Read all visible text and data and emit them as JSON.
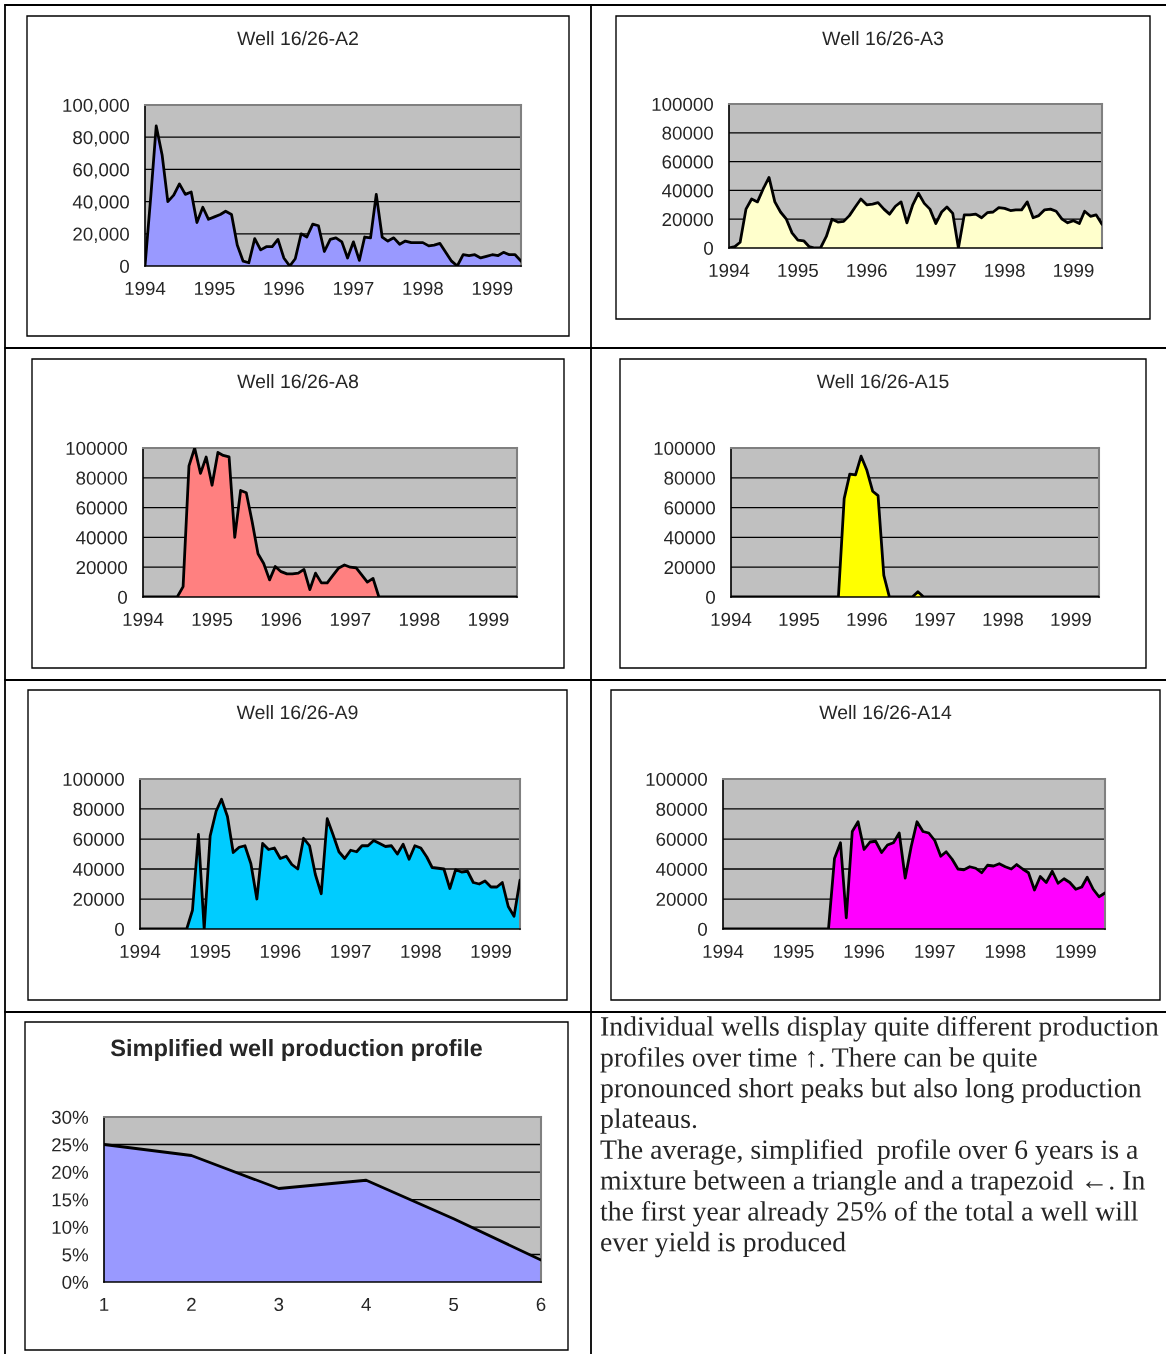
{
  "chart_data": [
    {
      "type": "area",
      "title": "Well 16/26-A2",
      "grid": "y",
      "x": [
        "1994-01",
        "1994-02",
        "1994-03",
        "1994-04",
        "1994-05",
        "1994-06",
        "1994-07",
        "1994-08",
        "1994-09",
        "1994-10",
        "1994-11",
        "1994-12",
        "1995-01",
        "1995-02",
        "1995-03",
        "1995-04",
        "1995-05",
        "1995-06",
        "1995-07",
        "1995-08",
        "1995-09",
        "1995-10",
        "1995-11",
        "1995-12",
        "1996-01",
        "1996-02",
        "1996-03",
        "1996-04",
        "1996-05",
        "1996-06",
        "1996-07",
        "1996-08",
        "1996-09",
        "1996-10",
        "1996-11",
        "1996-12",
        "1997-01",
        "1997-02",
        "1997-03",
        "1997-04",
        "1997-05",
        "1997-06",
        "1997-07",
        "1997-08",
        "1997-09",
        "1997-10",
        "1997-11",
        "1997-12",
        "1998-01",
        "1998-02",
        "1998-03",
        "1998-04",
        "1998-05",
        "1998-06",
        "1998-07",
        "1998-08",
        "1998-09",
        "1998-10",
        "1998-11",
        "1998-12",
        "1999-01",
        "1999-02",
        "1999-03",
        "1999-04",
        "1999-05",
        "1999-06"
      ],
      "xlim": [
        "1994-01",
        "1999-06"
      ],
      "xticks": [
        {
          "value": "1994-01",
          "label": "1994"
        },
        {
          "value": "1995-01",
          "label": "1995"
        },
        {
          "value": "1996-01",
          "label": "1996"
        },
        {
          "value": "1997-01",
          "label": "1997"
        },
        {
          "value": "1998-01",
          "label": "1998"
        },
        {
          "value": "1999-01",
          "label": "1999"
        }
      ],
      "ylim": [
        0,
        100000
      ],
      "yticks": [
        0,
        {
          "value": 20000,
          "label": "20,000"
        },
        {
          "value": 40000,
          "label": "40,000"
        },
        {
          "value": 60000,
          "label": "60,000"
        },
        {
          "value": 80000,
          "label": "80,000"
        },
        {
          "value": 100000,
          "label": "100,000"
        }
      ],
      "series": [
        {
          "color": "#9999ff",
          "values": [
            0,
            44000,
            87000,
            69000,
            40000,
            44000,
            51000,
            44500,
            46000,
            27000,
            36500,
            29000,
            30500,
            32000,
            34000,
            32000,
            13000,
            3000,
            2000,
            17000,
            10000,
            12000,
            12000,
            16500,
            5000,
            0,
            4500,
            20000,
            18000,
            26000,
            25000,
            9000,
            16500,
            17500,
            15000,
            5000,
            15000,
            3500,
            18000,
            17500,
            44500,
            18000,
            15500,
            17500,
            13500,
            15500,
            14500,
            14500,
            14500,
            12500,
            13000,
            14000,
            8500,
            3000,
            0,
            7000,
            6500,
            7000,
            5000,
            6000,
            7000,
            6500,
            8500,
            7000,
            7000,
            3000
          ]
        }
      ]
    },
    {
      "type": "area",
      "title": "Well 16/26-A3",
      "grid": "y",
      "x": [
        "1994-01",
        "1994-02",
        "1994-03",
        "1994-04",
        "1994-05",
        "1994-06",
        "1994-07",
        "1994-08",
        "1994-09",
        "1994-10",
        "1994-11",
        "1994-12",
        "1995-01",
        "1995-02",
        "1995-03",
        "1995-04",
        "1995-05",
        "1995-06",
        "1995-07",
        "1995-08",
        "1995-09",
        "1995-10",
        "1995-11",
        "1995-12",
        "1996-01",
        "1996-02",
        "1996-03",
        "1996-04",
        "1996-05",
        "1996-06",
        "1996-07",
        "1996-08",
        "1996-09",
        "1996-10",
        "1996-11",
        "1996-12",
        "1997-01",
        "1997-02",
        "1997-03",
        "1997-04",
        "1997-05",
        "1997-06",
        "1997-07",
        "1997-08",
        "1997-09",
        "1997-10",
        "1997-11",
        "1997-12",
        "1998-01",
        "1998-02",
        "1998-03",
        "1998-04",
        "1998-05",
        "1998-06",
        "1998-07",
        "1998-08",
        "1998-09",
        "1998-10",
        "1998-11",
        "1998-12",
        "1999-01",
        "1999-02",
        "1999-03",
        "1999-04",
        "1999-05",
        "1999-06"
      ],
      "xlim": [
        "1994-01",
        "1999-06"
      ],
      "xticks": [
        {
          "value": "1994-01",
          "label": "1994"
        },
        {
          "value": "1995-01",
          "label": "1995"
        },
        {
          "value": "1996-01",
          "label": "1996"
        },
        {
          "value": "1997-01",
          "label": "1997"
        },
        {
          "value": "1998-01",
          "label": "1998"
        },
        {
          "value": "1999-01",
          "label": "1999"
        }
      ],
      "ylim": [
        0,
        100000
      ],
      "yticks": [
        0,
        20000,
        40000,
        60000,
        80000,
        100000
      ],
      "series": [
        {
          "color": "#ffffcc",
          "values": [
            0,
            1000,
            4000,
            27000,
            34000,
            32000,
            41000,
            49000,
            32000,
            25000,
            20000,
            10500,
            5500,
            5000,
            1000,
            0,
            0,
            8000,
            20000,
            18000,
            18500,
            22500,
            28500,
            34000,
            30000,
            30500,
            31500,
            27000,
            23500,
            29000,
            32000,
            17500,
            30000,
            38000,
            31000,
            27000,
            17000,
            25000,
            28500,
            24000,
            0,
            23000,
            23000,
            23500,
            21000,
            24500,
            25000,
            28000,
            27500,
            26000,
            26500,
            26500,
            32000,
            21000,
            22500,
            26500,
            27000,
            25500,
            20000,
            17500,
            19000,
            17000,
            25500,
            22000,
            23000,
            16500
          ]
        }
      ]
    },
    {
      "type": "area",
      "title": "Well 16/26-A8",
      "grid": "y",
      "x": [
        "1994-01",
        "1994-02",
        "1994-03",
        "1994-04",
        "1994-05",
        "1994-06",
        "1994-07",
        "1994-08",
        "1994-09",
        "1994-10",
        "1994-11",
        "1994-12",
        "1995-01",
        "1995-02",
        "1995-03",
        "1995-04",
        "1995-05",
        "1995-06",
        "1995-07",
        "1995-08",
        "1995-09",
        "1995-10",
        "1995-11",
        "1995-12",
        "1996-01",
        "1996-02",
        "1996-03",
        "1996-04",
        "1996-05",
        "1996-06",
        "1996-07",
        "1996-08",
        "1996-09",
        "1996-10",
        "1996-11",
        "1996-12",
        "1997-01",
        "1997-02",
        "1997-03",
        "1997-04",
        "1997-05",
        "1997-06",
        "1997-07",
        "1997-08",
        "1997-09",
        "1997-10",
        "1997-11",
        "1997-12",
        "1998-01",
        "1998-02",
        "1998-03",
        "1998-04",
        "1998-05",
        "1998-06",
        "1998-07",
        "1998-08",
        "1998-09",
        "1998-10",
        "1998-11",
        "1998-12",
        "1999-01",
        "1999-02",
        "1999-03",
        "1999-04",
        "1999-05",
        "1999-06"
      ],
      "xlim": [
        "1994-01",
        "1999-06"
      ],
      "xticks": [
        {
          "value": "1994-01",
          "label": "1994"
        },
        {
          "value": "1995-01",
          "label": "1995"
        },
        {
          "value": "1996-01",
          "label": "1996"
        },
        {
          "value": "1997-01",
          "label": "1997"
        },
        {
          "value": "1998-01",
          "label": "1998"
        },
        {
          "value": "1999-01",
          "label": "1999"
        }
      ],
      "ylim": [
        0,
        100000
      ],
      "yticks": [
        0,
        20000,
        40000,
        60000,
        80000,
        100000
      ],
      "series": [
        {
          "color": "#ff8080",
          "values": [
            0,
            0,
            0,
            0,
            0,
            0,
            0,
            7000,
            88000,
            100000,
            83000,
            94000,
            75000,
            97000,
            95000,
            94000,
            40000,
            71500,
            70000,
            50500,
            29000,
            22500,
            11500,
            20500,
            17000,
            15500,
            15500,
            16000,
            18500,
            5000,
            16000,
            9500,
            9500,
            14500,
            19500,
            21500,
            20000,
            19500,
            15000,
            10000,
            12500,
            0,
            0,
            0,
            0,
            0,
            0,
            0,
            0,
            0,
            0,
            0,
            0,
            0,
            0,
            0,
            0,
            0,
            0,
            0,
            0,
            0,
            0,
            0,
            0,
            0
          ]
        }
      ]
    },
    {
      "type": "area",
      "title": "Well 16/26-A15",
      "grid": "y",
      "x": [
        "1994-01",
        "1994-02",
        "1994-03",
        "1994-04",
        "1994-05",
        "1994-06",
        "1994-07",
        "1994-08",
        "1994-09",
        "1994-10",
        "1994-11",
        "1994-12",
        "1995-01",
        "1995-02",
        "1995-03",
        "1995-04",
        "1995-05",
        "1995-06",
        "1995-07",
        "1995-08",
        "1995-09",
        "1995-10",
        "1995-11",
        "1995-12",
        "1996-01",
        "1996-02",
        "1996-03",
        "1996-04",
        "1996-05",
        "1996-06",
        "1996-07",
        "1996-08",
        "1996-09",
        "1996-10",
        "1996-11",
        "1996-12",
        "1997-01",
        "1997-02",
        "1997-03",
        "1997-04",
        "1997-05",
        "1997-06",
        "1997-07",
        "1997-08",
        "1997-09",
        "1997-10",
        "1997-11",
        "1997-12",
        "1998-01",
        "1998-02",
        "1998-03",
        "1998-04",
        "1998-05",
        "1998-06",
        "1998-07",
        "1998-08",
        "1998-09",
        "1998-10",
        "1998-11",
        "1998-12",
        "1999-01",
        "1999-02",
        "1999-03",
        "1999-04",
        "1999-05",
        "1999-06"
      ],
      "xlim": [
        "1994-01",
        "1999-06"
      ],
      "xticks": [
        {
          "value": "1994-01",
          "label": "1994"
        },
        {
          "value": "1995-01",
          "label": "1995"
        },
        {
          "value": "1996-01",
          "label": "1996"
        },
        {
          "value": "1997-01",
          "label": "1997"
        },
        {
          "value": "1998-01",
          "label": "1998"
        },
        {
          "value": "1999-01",
          "label": "1999"
        }
      ],
      "ylim": [
        0,
        100000
      ],
      "yticks": [
        0,
        20000,
        40000,
        60000,
        80000,
        100000
      ],
      "series": [
        {
          "color": "#ffff00",
          "values": [
            0,
            0,
            0,
            0,
            0,
            0,
            0,
            0,
            0,
            0,
            0,
            0,
            0,
            0,
            0,
            0,
            0,
            0,
            0,
            0,
            66000,
            82500,
            82000,
            94500,
            85000,
            71000,
            68000,
            14500,
            0,
            0,
            0,
            0,
            0,
            3500,
            0,
            0,
            0,
            0,
            0,
            0,
            0,
            0,
            0,
            0,
            0,
            0,
            0,
            0,
            0,
            0,
            0,
            0,
            0,
            0,
            0,
            0,
            0,
            0,
            0,
            0,
            0,
            0,
            0,
            0,
            0,
            0
          ]
        }
      ]
    },
    {
      "type": "area",
      "title": "Well 16/26-A9",
      "grid": "y",
      "x": [
        "1994-01",
        "1994-02",
        "1994-03",
        "1994-04",
        "1994-05",
        "1994-06",
        "1994-07",
        "1994-08",
        "1994-09",
        "1994-10",
        "1994-11",
        "1994-12",
        "1995-01",
        "1995-02",
        "1995-03",
        "1995-04",
        "1995-05",
        "1995-06",
        "1995-07",
        "1995-08",
        "1995-09",
        "1995-10",
        "1995-11",
        "1995-12",
        "1996-01",
        "1996-02",
        "1996-03",
        "1996-04",
        "1996-05",
        "1996-06",
        "1996-07",
        "1996-08",
        "1996-09",
        "1996-10",
        "1996-11",
        "1996-12",
        "1997-01",
        "1997-02",
        "1997-03",
        "1997-04",
        "1997-05",
        "1997-06",
        "1997-07",
        "1997-08",
        "1997-09",
        "1997-10",
        "1997-11",
        "1997-12",
        "1998-01",
        "1998-02",
        "1998-03",
        "1998-04",
        "1998-05",
        "1998-06",
        "1998-07",
        "1998-08",
        "1998-09",
        "1998-10",
        "1998-11",
        "1998-12",
        "1999-01",
        "1999-02",
        "1999-03",
        "1999-04",
        "1999-05",
        "1999-06"
      ],
      "xlim": [
        "1994-01",
        "1999-06"
      ],
      "xticks": [
        {
          "value": "1994-01",
          "label": "1994"
        },
        {
          "value": "1995-01",
          "label": "1995"
        },
        {
          "value": "1996-01",
          "label": "1996"
        },
        {
          "value": "1997-01",
          "label": "1997"
        },
        {
          "value": "1998-01",
          "label": "1998"
        },
        {
          "value": "1999-01",
          "label": "1999"
        }
      ],
      "ylim": [
        0,
        100000
      ],
      "yticks": [
        0,
        20000,
        40000,
        60000,
        80000,
        100000
      ],
      "series": [
        {
          "color": "#00ccff",
          "values": [
            0,
            0,
            0,
            0,
            0,
            0,
            0,
            0,
            0,
            12500,
            63000,
            0,
            62000,
            78500,
            86500,
            75000,
            51000,
            54500,
            55500,
            43500,
            20000,
            57000,
            53000,
            54000,
            47000,
            48500,
            43000,
            40000,
            60500,
            55500,
            36500,
            23500,
            73500,
            63000,
            51500,
            47000,
            52500,
            51500,
            55500,
            55500,
            59000,
            57000,
            55000,
            55500,
            50000,
            56500,
            46500,
            55500,
            54000,
            48000,
            41000,
            40500,
            40000,
            27000,
            39500,
            38000,
            38500,
            31000,
            30000,
            32000,
            28000,
            28000,
            31000,
            15000,
            8500,
            32500
          ]
        }
      ]
    },
    {
      "type": "area",
      "title": "Well 16/26-A14",
      "grid": "y",
      "x": [
        "1994-01",
        "1994-02",
        "1994-03",
        "1994-04",
        "1994-05",
        "1994-06",
        "1994-07",
        "1994-08",
        "1994-09",
        "1994-10",
        "1994-11",
        "1994-12",
        "1995-01",
        "1995-02",
        "1995-03",
        "1995-04",
        "1995-05",
        "1995-06",
        "1995-07",
        "1995-08",
        "1995-09",
        "1995-10",
        "1995-11",
        "1995-12",
        "1996-01",
        "1996-02",
        "1996-03",
        "1996-04",
        "1996-05",
        "1996-06",
        "1996-07",
        "1996-08",
        "1996-09",
        "1996-10",
        "1996-11",
        "1996-12",
        "1997-01",
        "1997-02",
        "1997-03",
        "1997-04",
        "1997-05",
        "1997-06",
        "1997-07",
        "1997-08",
        "1997-09",
        "1997-10",
        "1997-11",
        "1997-12",
        "1998-01",
        "1998-02",
        "1998-03",
        "1998-04",
        "1998-05",
        "1998-06",
        "1998-07",
        "1998-08",
        "1998-09",
        "1998-10",
        "1998-11",
        "1998-12",
        "1999-01",
        "1999-02",
        "1999-03",
        "1999-04",
        "1999-05",
        "1999-06"
      ],
      "xlim": [
        "1994-01",
        "1999-06"
      ],
      "xticks": [
        {
          "value": "1994-01",
          "label": "1994"
        },
        {
          "value": "1995-01",
          "label": "1995"
        },
        {
          "value": "1996-01",
          "label": "1996"
        },
        {
          "value": "1997-01",
          "label": "1997"
        },
        {
          "value": "1998-01",
          "label": "1998"
        },
        {
          "value": "1999-01",
          "label": "1999"
        }
      ],
      "ylim": [
        0,
        100000
      ],
      "yticks": [
        0,
        20000,
        40000,
        60000,
        80000,
        100000
      ],
      "series": [
        {
          "color": "#ff00ff",
          "values": [
            0,
            0,
            0,
            0,
            0,
            0,
            0,
            0,
            0,
            0,
            0,
            0,
            0,
            0,
            0,
            0,
            0,
            0,
            0,
            47000,
            57500,
            7500,
            65000,
            71500,
            53000,
            58000,
            58500,
            51000,
            56000,
            57500,
            64000,
            34000,
            55000,
            71500,
            65000,
            64000,
            59000,
            48500,
            51500,
            46500,
            40000,
            39500,
            41500,
            40500,
            37500,
            42500,
            42000,
            43500,
            41500,
            40000,
            43000,
            40000,
            37500,
            26000,
            35000,
            31000,
            38500,
            30500,
            33500,
            31000,
            26500,
            28000,
            34500,
            26500,
            21500,
            24000
          ]
        }
      ]
    },
    {
      "type": "area",
      "title": "Simplified well production profile",
      "grid": "y",
      "x": [
        1,
        2,
        3,
        4,
        5,
        6
      ],
      "xlim": [
        1,
        6
      ],
      "xticks": [
        1,
        2,
        3,
        4,
        5,
        6
      ],
      "ylim": [
        0,
        30
      ],
      "yticks": [
        {
          "value": 0,
          "label": "0%"
        },
        {
          "value": 5,
          "label": "5%"
        },
        {
          "value": 10,
          "label": "10%"
        },
        {
          "value": 15,
          "label": "15%"
        },
        {
          "value": 20,
          "label": "20%"
        },
        {
          "value": 25,
          "label": "25%"
        },
        {
          "value": 30,
          "label": "30%"
        }
      ],
      "series": [
        {
          "color": "#9999ff",
          "values": [
            25,
            23,
            17,
            18.5,
            11.5,
            4
          ]
        }
      ]
    },
    {
      "type": "other",
      "annotations": [
        "Individual wells display quite different production profiles over time ↑. There can be quite pronounced short peaks but also long production plateaus.",
        "The average, simplified  profile over 6 years is a mixture between a triangle and a trapezoid ←. In the first year already 25% of the total a well will ever yield is produced"
      ]
    }
  ]
}
